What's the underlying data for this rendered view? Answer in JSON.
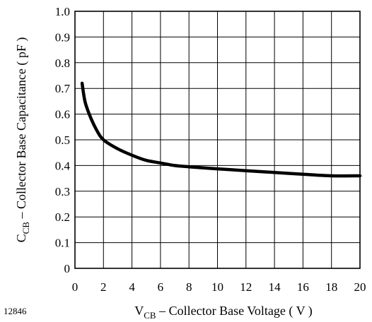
{
  "figure_id": "12846",
  "chart_data": {
    "type": "line",
    "x_label": {
      "main": "V",
      "subscript": "CB",
      "rest": " – Collector Base Voltage ( V )"
    },
    "y_label": {
      "main": "C",
      "subscript": "CB",
      "rest": " – Collector Base Capacitance ( pF )"
    },
    "xlim": [
      0,
      20
    ],
    "ylim": [
      0,
      1.0
    ],
    "x_ticks": [
      "0",
      "2",
      "4",
      "6",
      "8",
      "10",
      "12",
      "14",
      "16",
      "18",
      "20"
    ],
    "y_ticks": [
      "0",
      "0.1",
      "0.2",
      "0.3",
      "0.4",
      "0.5",
      "0.6",
      "0.7",
      "0.8",
      "0.9",
      "1.0"
    ],
    "grid": true,
    "series": [
      {
        "color": "#000000",
        "x": [
          0.5,
          0.7,
          1.0,
          1.5,
          2.0,
          3.0,
          4.0,
          5.0,
          6.0,
          7.0,
          8.0,
          10.0,
          12.0,
          14.0,
          16.0,
          18.0,
          20.0
        ],
        "y": [
          0.72,
          0.65,
          0.6,
          0.54,
          0.5,
          0.465,
          0.44,
          0.42,
          0.41,
          0.4,
          0.395,
          0.387,
          0.38,
          0.373,
          0.366,
          0.36,
          0.36
        ]
      }
    ]
  }
}
